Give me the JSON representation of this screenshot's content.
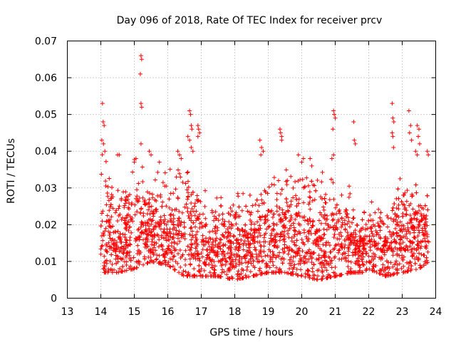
{
  "chart_data": {
    "type": "scatter",
    "title": "Day 096 of 2018, Rate Of TEC Index for receiver prcv",
    "xlabel": "GPS time / hours",
    "ylabel": "ROTI / TECUs",
    "xlim": [
      13,
      24
    ],
    "ylim": [
      0,
      0.07
    ],
    "x_ticks": [
      13,
      14,
      15,
      16,
      17,
      18,
      19,
      20,
      21,
      22,
      23,
      24
    ],
    "y_ticks": [
      0,
      0.01,
      0.02,
      0.03,
      0.04,
      0.05,
      0.06,
      0.07
    ],
    "x_tick_labels": [
      "13",
      "14",
      "15",
      "16",
      "17",
      "18",
      "19",
      "20",
      "21",
      "22",
      "23",
      "24"
    ],
    "y_tick_labels": [
      "0",
      "0.01",
      "0.02",
      "0.03",
      "0.04",
      "0.05",
      "0.06",
      "0.07"
    ],
    "grid": true,
    "marker": "+",
    "color": "#ff0000",
    "series": [
      {
        "name": "ROTI",
        "x_range": [
          14.0,
          23.8
        ],
        "profile": [
          {
            "x": 14.0,
            "lo": 0.007,
            "hi": 0.045
          },
          {
            "x": 14.5,
            "lo": 0.007,
            "hi": 0.03
          },
          {
            "x": 15.0,
            "lo": 0.008,
            "hi": 0.038
          },
          {
            "x": 15.5,
            "lo": 0.01,
            "hi": 0.035
          },
          {
            "x": 16.0,
            "lo": 0.009,
            "hi": 0.035
          },
          {
            "x": 16.5,
            "lo": 0.006,
            "hi": 0.038
          },
          {
            "x": 17.0,
            "lo": 0.006,
            "hi": 0.03
          },
          {
            "x": 17.5,
            "lo": 0.006,
            "hi": 0.028
          },
          {
            "x": 18.0,
            "lo": 0.005,
            "hi": 0.03
          },
          {
            "x": 18.5,
            "lo": 0.006,
            "hi": 0.03
          },
          {
            "x": 19.0,
            "lo": 0.007,
            "hi": 0.033
          },
          {
            "x": 19.5,
            "lo": 0.007,
            "hi": 0.035
          },
          {
            "x": 20.0,
            "lo": 0.006,
            "hi": 0.034
          },
          {
            "x": 20.5,
            "lo": 0.005,
            "hi": 0.035
          },
          {
            "x": 21.0,
            "lo": 0.006,
            "hi": 0.035
          },
          {
            "x": 21.5,
            "lo": 0.007,
            "hi": 0.03
          },
          {
            "x": 21.8,
            "lo": 0.007,
            "hi": 0.022
          },
          {
            "x": 22.0,
            "lo": 0.008,
            "hi": 0.028
          },
          {
            "x": 22.5,
            "lo": 0.006,
            "hi": 0.025
          },
          {
            "x": 23.0,
            "lo": 0.007,
            "hi": 0.035
          },
          {
            "x": 23.5,
            "lo": 0.008,
            "hi": 0.032
          },
          {
            "x": 23.8,
            "lo": 0.01,
            "hi": 0.03
          }
        ],
        "outliers": [
          [
            14.05,
            0.053
          ],
          [
            14.07,
            0.048
          ],
          [
            14.1,
            0.047
          ],
          [
            14.03,
            0.043
          ],
          [
            14.08,
            0.042
          ],
          [
            14.12,
            0.04
          ],
          [
            14.5,
            0.039
          ],
          [
            14.55,
            0.039
          ],
          [
            15.0,
            0.037
          ],
          [
            15.05,
            0.038
          ],
          [
            15.2,
            0.066
          ],
          [
            15.22,
            0.065
          ],
          [
            15.18,
            0.061
          ],
          [
            15.2,
            0.053
          ],
          [
            15.22,
            0.052
          ],
          [
            15.2,
            0.042
          ],
          [
            15.45,
            0.04
          ],
          [
            15.5,
            0.039
          ],
          [
            15.75,
            0.037
          ],
          [
            16.3,
            0.04
          ],
          [
            16.35,
            0.039
          ],
          [
            16.4,
            0.038
          ],
          [
            16.65,
            0.051
          ],
          [
            16.68,
            0.05
          ],
          [
            16.7,
            0.047
          ],
          [
            16.72,
            0.046
          ],
          [
            16.6,
            0.044
          ],
          [
            16.65,
            0.043
          ],
          [
            16.7,
            0.041
          ],
          [
            16.75,
            0.04
          ],
          [
            16.9,
            0.047
          ],
          [
            16.92,
            0.046
          ],
          [
            16.95,
            0.045
          ],
          [
            16.9,
            0.044
          ],
          [
            18.75,
            0.043
          ],
          [
            18.8,
            0.041
          ],
          [
            18.85,
            0.04
          ],
          [
            18.78,
            0.039
          ],
          [
            19.35,
            0.046
          ],
          [
            19.37,
            0.045
          ],
          [
            19.4,
            0.044
          ],
          [
            19.4,
            0.043
          ],
          [
            19.9,
            0.039
          ],
          [
            20.0,
            0.037
          ],
          [
            20.05,
            0.038
          ],
          [
            20.25,
            0.038
          ],
          [
            20.3,
            0.036
          ],
          [
            20.95,
            0.051
          ],
          [
            20.97,
            0.05
          ],
          [
            21.0,
            0.049
          ],
          [
            20.93,
            0.046
          ],
          [
            20.9,
            0.038
          ],
          [
            20.95,
            0.039
          ],
          [
            21.55,
            0.048
          ],
          [
            21.57,
            0.043
          ],
          [
            21.6,
            0.042
          ],
          [
            22.7,
            0.053
          ],
          [
            22.72,
            0.049
          ],
          [
            22.75,
            0.048
          ],
          [
            22.7,
            0.045
          ],
          [
            22.72,
            0.044
          ],
          [
            22.74,
            0.041
          ],
          [
            23.2,
            0.051
          ],
          [
            23.25,
            0.047
          ],
          [
            23.22,
            0.045
          ],
          [
            23.28,
            0.043
          ],
          [
            23.45,
            0.047
          ],
          [
            23.5,
            0.046
          ],
          [
            23.48,
            0.044
          ],
          [
            23.52,
            0.042
          ],
          [
            23.4,
            0.04
          ],
          [
            23.45,
            0.039
          ],
          [
            23.75,
            0.04
          ],
          [
            23.78,
            0.039
          ]
        ]
      }
    ]
  }
}
